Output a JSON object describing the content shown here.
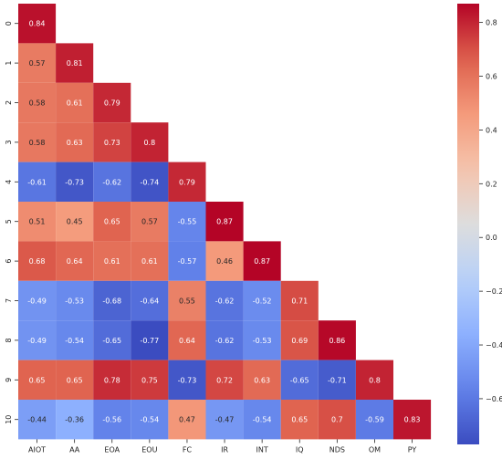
{
  "chart_data": {
    "type": "heatmap",
    "title": "",
    "xlabel": "",
    "ylabel": "",
    "x_categories": [
      "AIOT",
      "AA",
      "EOA",
      "EOU",
      "FC",
      "IR",
      "INT",
      "IQ",
      "NDS",
      "OM",
      "PY"
    ],
    "y_categories": [
      "0",
      "1",
      "2",
      "3",
      "4",
      "5",
      "6",
      "7",
      "8",
      "9",
      "10"
    ],
    "values": [
      [
        0.84
      ],
      [
        0.57,
        0.81
      ],
      [
        0.58,
        0.61,
        0.79
      ],
      [
        0.58,
        0.63,
        0.73,
        0.8
      ],
      [
        -0.61,
        -0.73,
        -0.62,
        -0.74,
        0.79
      ],
      [
        0.51,
        0.45,
        0.65,
        0.57,
        -0.55,
        0.87
      ],
      [
        0.68,
        0.64,
        0.61,
        0.61,
        -0.57,
        0.46,
        0.87
      ],
      [
        -0.49,
        -0.53,
        -0.68,
        -0.64,
        0.55,
        -0.62,
        -0.52,
        0.71
      ],
      [
        -0.49,
        -0.54,
        -0.65,
        -0.77,
        0.64,
        -0.62,
        -0.53,
        0.69,
        0.86
      ],
      [
        0.65,
        0.65,
        0.78,
        0.75,
        -0.73,
        0.72,
        0.63,
        -0.65,
        -0.71,
        0.8
      ],
      [
        -0.44,
        -0.36,
        -0.56,
        -0.54,
        0.47,
        -0.47,
        -0.54,
        0.65,
        0.7,
        -0.59,
        0.83
      ]
    ],
    "vmin": -0.77,
    "vmax": 0.87,
    "colormap": "coolwarm",
    "colorbar": {
      "ticks": [
        -0.6,
        -0.4,
        -0.2,
        0.0,
        0.2,
        0.4,
        0.6,
        0.8
      ],
      "tick_labels": [
        "−0.6",
        "−0.4",
        "−0.2",
        "0.0",
        "0.2",
        "0.4",
        "0.6",
        "0.8"
      ]
    }
  }
}
